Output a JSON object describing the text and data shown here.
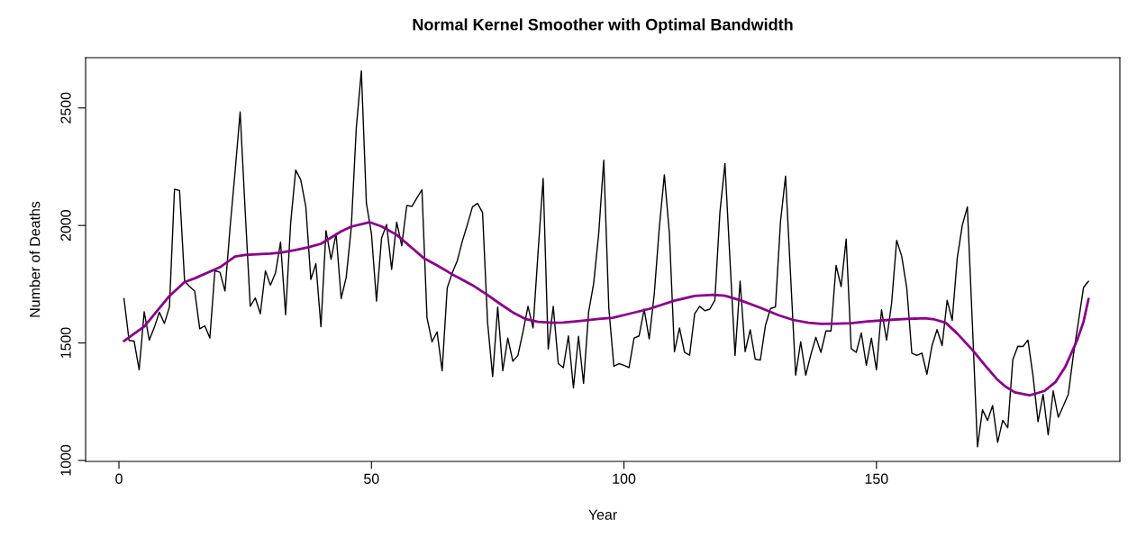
{
  "chart_data": {
    "type": "line",
    "title": "Normal Kernel Smoother with Optimal Bandwidth",
    "xlabel": "Year",
    "ylabel": "Number of Deaths",
    "x": [
      1,
      2,
      3,
      4,
      5,
      6,
      7,
      8,
      9,
      10,
      11,
      12,
      13,
      14,
      15,
      16,
      17,
      18,
      19,
      20,
      21,
      22,
      23,
      24,
      25,
      26,
      27,
      28,
      29,
      30,
      31,
      32,
      33,
      34,
      35,
      36,
      37,
      38,
      39,
      40,
      41,
      42,
      43,
      44,
      45,
      46,
      47,
      48,
      49,
      50,
      51,
      52,
      53,
      54,
      55,
      56,
      57,
      58,
      59,
      60,
      61,
      62,
      63,
      64,
      65,
      66,
      67,
      68,
      69,
      70,
      71,
      72,
      73,
      74,
      75,
      76,
      77,
      78,
      79,
      80,
      81,
      82,
      83,
      84,
      85,
      86,
      87,
      88,
      89,
      90,
      91,
      92,
      93,
      94,
      95,
      96,
      97,
      98,
      99,
      100,
      101,
      102,
      103,
      104,
      105,
      106,
      107,
      108,
      109,
      110,
      111,
      112,
      113,
      114,
      115,
      116,
      117,
      118,
      119,
      120,
      121,
      122,
      123,
      124,
      125,
      126,
      127,
      128,
      129,
      130,
      131,
      132,
      133,
      134,
      135,
      136,
      137,
      138,
      139,
      140,
      141,
      142,
      143,
      144,
      145,
      146,
      147,
      148,
      149,
      150,
      151,
      152,
      153,
      154,
      155,
      156,
      157,
      158,
      159,
      160,
      161,
      162,
      163,
      164,
      165,
      166,
      167,
      168,
      169,
      170,
      171,
      172,
      173,
      174,
      175,
      176,
      177,
      178,
      179,
      180,
      181,
      182,
      183,
      184,
      185,
      186,
      187,
      188,
      189,
      190,
      191,
      192
    ],
    "series": [
      {
        "color": "#000000",
        "values": [
          1689,
          1511,
          1508,
          1386,
          1633,
          1512,
          1566,
          1631,
          1583,
          1653,
          2154,
          2149,
          1763,
          1740,
          1721,
          1560,
          1573,
          1521,
          1808,
          1801,
          1721,
          1990,
          2230,
          2483,
          2060,
          1656,
          1692,
          1624,
          1807,
          1746,
          1798,
          1929,
          1620,
          2010,
          2236,
          2194,
          2081,
          1770,
          1837,
          1569,
          1978,
          1856,
          1965,
          1689,
          1779,
          1990,
          2416,
          2658,
          2094,
          1965,
          1678,
          1946,
          2004,
          1813,
          2014,
          1914,
          2085,
          2081,
          2117,
          2152,
          1607,
          1505,
          1547,
          1382,
          1734,
          1798,
          1850,
          1933,
          2004,
          2079,
          2094,
          2055,
          1586,
          1357,
          1653,
          1382,
          1521,
          1422,
          1447,
          1547,
          1656,
          1564,
          1888,
          2200,
          1474,
          1656,
          1412,
          1395,
          1530,
          1309,
          1528,
          1328,
          1631,
          1753,
          1965,
          2278,
          1650,
          1401,
          1412,
          1405,
          1395,
          1521,
          1530,
          1644,
          1517,
          1708,
          1991,
          2216,
          1965,
          1463,
          1564,
          1460,
          1448,
          1624,
          1656,
          1637,
          1644,
          1682,
          2055,
          2264,
          1850,
          1447,
          1763,
          1463,
          1556,
          1431,
          1427,
          1573,
          1646,
          1653,
          2017,
          2210,
          1785,
          1363,
          1505,
          1363,
          1450,
          1524,
          1460,
          1551,
          1551,
          1830,
          1740,
          1942,
          1476,
          1460,
          1543,
          1405,
          1521,
          1386,
          1641,
          1512,
          1669,
          1937,
          1869,
          1734,
          1457,
          1447,
          1457,
          1367,
          1489,
          1557,
          1489,
          1682,
          1596,
          1862,
          2001,
          2079,
          1579,
          1058,
          1216,
          1170,
          1234,
          1077,
          1171,
          1139,
          1429,
          1486,
          1485,
          1512,
          1360,
          1165,
          1281,
          1109,
          1296,
          1184,
          1232,
          1283,
          1450,
          1592,
          1736,
          1763
        ]
      },
      {
        "color": "#8b008b",
        "x": [
          1,
          5,
          10,
          13,
          15,
          20,
          23,
          25,
          30,
          32,
          35,
          37.5,
          40,
          44,
          46,
          49.6,
          52,
          55,
          58,
          60.3,
          63,
          66,
          70,
          73,
          75.3,
          78,
          80.6,
          83,
          85.9,
          88,
          91.8,
          95,
          97.8,
          101,
          105,
          110,
          114,
          117.6,
          120,
          123,
          127,
          130.6,
          133.5,
          136.5,
          139,
          142.4,
          145,
          148.3,
          152.5,
          156,
          159.5,
          161.5,
          163.7,
          166,
          169,
          171.5,
          173.8,
          175.5,
          177.4,
          180.3,
          183.3,
          185.5,
          187.4,
          189.8,
          191,
          192
        ],
        "values": [
          1508,
          1570,
          1700,
          1759,
          1775,
          1822,
          1868,
          1875,
          1880,
          1884,
          1896,
          1907,
          1922,
          1975,
          1995,
          2014,
          1996,
          1960,
          1905,
          1862,
          1830,
          1792,
          1746,
          1704,
          1669,
          1630,
          1601,
          1590,
          1586,
          1587,
          1595,
          1602,
          1607,
          1624,
          1645,
          1680,
          1700,
          1705,
          1701,
          1682,
          1650,
          1618,
          1598,
          1586,
          1581,
          1582,
          1584,
          1592,
          1598,
          1602,
          1605,
          1600,
          1586,
          1540,
          1470,
          1405,
          1347,
          1315,
          1290,
          1277,
          1296,
          1335,
          1399,
          1515,
          1590,
          1688
        ]
      }
    ],
    "xlim": [
      -6.6,
      198.2
    ],
    "ylim": [
      996,
      2714
    ],
    "xticks": [
      0,
      50,
      100,
      150
    ],
    "yticks": [
      1000,
      1500,
      2000,
      2500
    ],
    "grid": false,
    "legend": false
  }
}
